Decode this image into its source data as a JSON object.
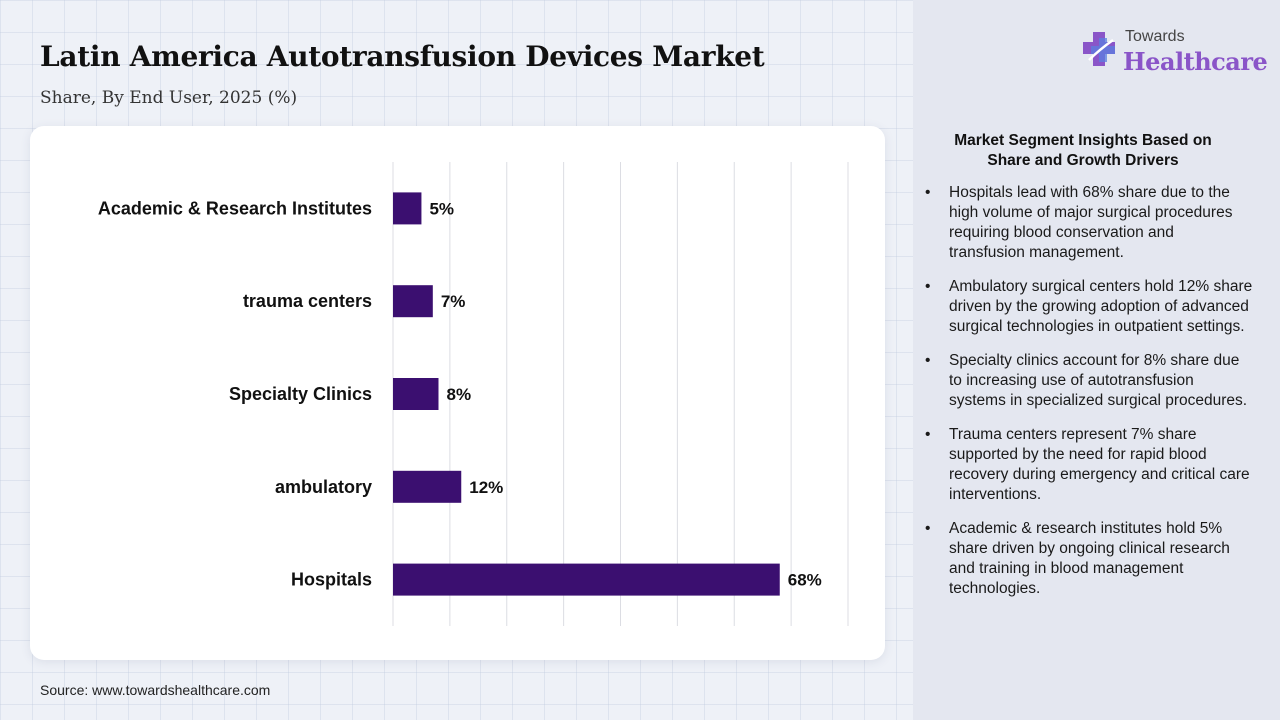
{
  "header": {
    "title": "Latin America Autotransfusion Devices Market",
    "subtitle": "Share, By End User, 2025 (%)"
  },
  "source": "Source: www.towardshealthcare.com",
  "logo": {
    "line1": "Towards",
    "line2": "Healthcare",
    "icon": "medical-cross-icon"
  },
  "insights": {
    "title": "Market Segment Insights Based on Share and Growth Drivers",
    "bullet": "•",
    "items": [
      "Hospitals lead with 68% share due to the high volume of major surgical procedures requiring blood conservation and transfusion management.",
      "Ambulatory surgical centers hold 12% share driven by the growing adoption of advanced surgical technologies in outpatient settings.",
      "Specialty clinics account for 8% share due to increasing use of autotransfusion systems in specialized surgical procedures.",
      "Trauma centers represent 7% share supported by the need for rapid blood recovery during emergency and critical care interventions.",
      "Academic & research institutes hold 5% share driven by ongoing clinical research and training in blood management technologies."
    ]
  },
  "colors": {
    "bar": "#3b0f70",
    "grid": "#dcdde3",
    "logo_purple": "#8a55c8",
    "logo_blue": "#5b7fe0"
  },
  "chart_data": {
    "type": "bar",
    "orientation": "horizontal",
    "categories": [
      "Academic & Research Institutes",
      "trauma centers",
      "Specialty Clinics",
      "ambulatory",
      "Hospitals"
    ],
    "values": [
      5,
      7,
      8,
      12,
      68
    ],
    "value_labels": [
      "5%",
      "7%",
      "8%",
      "12%",
      "68%"
    ],
    "xlim": [
      0,
      80
    ],
    "grid": true
  }
}
